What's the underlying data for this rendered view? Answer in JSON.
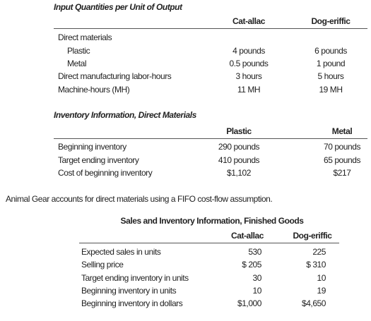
{
  "input_quantities": {
    "title": "Input Quantities per Unit of Output",
    "columns": [
      "Cat-allac",
      "Dog-eriffic"
    ],
    "rows": [
      {
        "label": "Direct materials",
        "items": [
          {
            "label": "Plastic",
            "values": [
              "4 pounds",
              "6 pounds"
            ]
          },
          {
            "label": "Metal",
            "values": [
              "0.5 pounds",
              "1 pound"
            ]
          }
        ]
      },
      {
        "label": "Direct manufacturing labor-hours",
        "values": [
          "3 hours",
          "5 hours"
        ]
      },
      {
        "label": "Machine-hours (MH)",
        "values": [
          "11 MH",
          "19 MH"
        ]
      }
    ]
  },
  "inventory_materials": {
    "title": "Inventory Information, Direct Materials",
    "columns": [
      "Plastic",
      "Metal"
    ],
    "rows": [
      {
        "label": "Beginning inventory",
        "values": [
          "290 pounds",
          "70 pounds"
        ]
      },
      {
        "label": "Target ending inventory",
        "values": [
          "410 pounds",
          "65 pounds"
        ]
      },
      {
        "label": "Cost of beginning inventory",
        "values": [
          "$1,102",
          "$217"
        ]
      }
    ]
  },
  "note": "Animal Gear accounts for direct materials using a FIFO cost-flow assumption.",
  "finished_goods": {
    "title": "Sales and Inventory Information, Finished Goods",
    "columns": [
      "Cat-allac",
      "Dog-eriffic"
    ],
    "rows": [
      {
        "label": "Expected sales in units",
        "values": [
          "530",
          "225"
        ]
      },
      {
        "label": "Selling price",
        "values": [
          "$ 205",
          "$ 310"
        ]
      },
      {
        "label": "Target ending inventory in units",
        "values": [
          "30",
          "10"
        ]
      },
      {
        "label": "Beginning inventory in units",
        "values": [
          "10",
          "19"
        ]
      },
      {
        "label": "Beginning inventory in dollars",
        "values": [
          "$1,000",
          "$4,650"
        ]
      }
    ]
  }
}
